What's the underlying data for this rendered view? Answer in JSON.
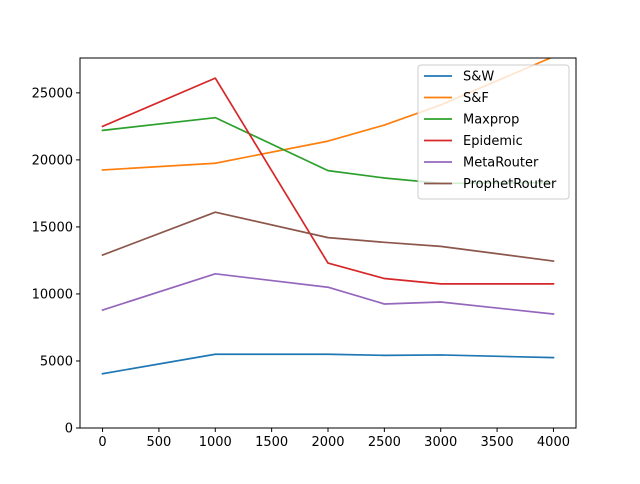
{
  "chart_data": {
    "type": "line",
    "title": "",
    "xlabel": "",
    "ylabel": "",
    "x": [
      0,
      1000,
      2000,
      2500,
      3000,
      4000
    ],
    "xlim": [
      -200,
      4200
    ],
    "ylim": [
      0,
      27600
    ],
    "xticks": [
      "0",
      "500",
      "1000",
      "1500",
      "2000",
      "2500",
      "3000",
      "3500",
      "4000"
    ],
    "yticks": [
      "0",
      "5000",
      "10000",
      "15000",
      "20000",
      "25000"
    ],
    "xtick_values": [
      0,
      500,
      1000,
      1500,
      2000,
      2500,
      3000,
      3500,
      4000
    ],
    "ytick_values": [
      0,
      5000,
      10000,
      15000,
      20000,
      25000
    ],
    "grid": false,
    "legend_position": "top-right",
    "series": [
      {
        "name": "S&W",
        "color": "#1f77b4",
        "values": [
          4050,
          5500,
          5500,
          5420,
          5450,
          5250
        ]
      },
      {
        "name": "S&F",
        "color": "#ff7f0e",
        "values": [
          19250,
          19750,
          21400,
          22600,
          24100,
          27700
        ]
      },
      {
        "name": "Maxprop",
        "color": "#2ca02c",
        "values": [
          22200,
          23150,
          19200,
          18650,
          18250,
          18300
        ]
      },
      {
        "name": "Epidemic",
        "color": "#d62728",
        "values": [
          22500,
          26100,
          12300,
          11150,
          10750,
          10750
        ]
      },
      {
        "name": "MetaRouter",
        "color": "#9467bd",
        "values": [
          8800,
          11500,
          10500,
          9250,
          9400,
          8500
        ]
      },
      {
        "name": "ProphetRouter",
        "color": "#8c564b",
        "values": [
          12900,
          16100,
          14200,
          13850,
          13550,
          12450
        ]
      }
    ]
  }
}
